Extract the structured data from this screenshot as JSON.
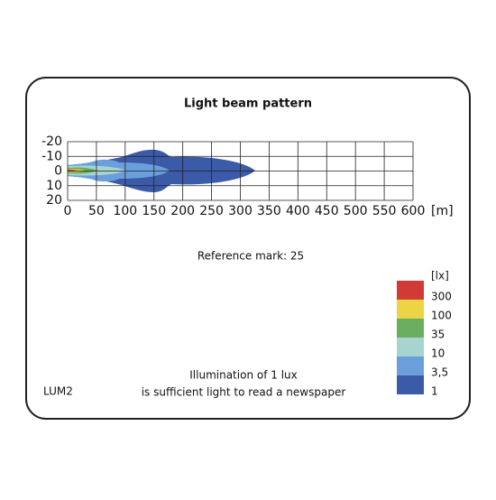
{
  "title": "Light beam pattern",
  "plot": {
    "y_ticks": [
      "-20",
      "-10",
      "0",
      "10",
      "20"
    ],
    "x_ticks": [
      "0",
      "50",
      "100",
      "150",
      "200",
      "250",
      "300",
      "350",
      "400",
      "450",
      "500",
      "550",
      "600"
    ],
    "x_unit": "[m]"
  },
  "reference_mark": "Reference mark: 25",
  "legend": {
    "unit": "[lx]",
    "items": [
      {
        "label": "300",
        "color": "#d23a36"
      },
      {
        "label": "100",
        "color": "#ecd545"
      },
      {
        "label": "35",
        "color": "#6aae5f"
      },
      {
        "label": "10",
        "color": "#a8d4d0"
      },
      {
        "label": "3,5",
        "color": "#6a9fdc"
      },
      {
        "label": "1",
        "color": "#3b5aa8"
      }
    ]
  },
  "model": "LUM2",
  "footnote": [
    "Illumination of 1 lux",
    "is sufficient light to read a newspaper"
  ]
}
